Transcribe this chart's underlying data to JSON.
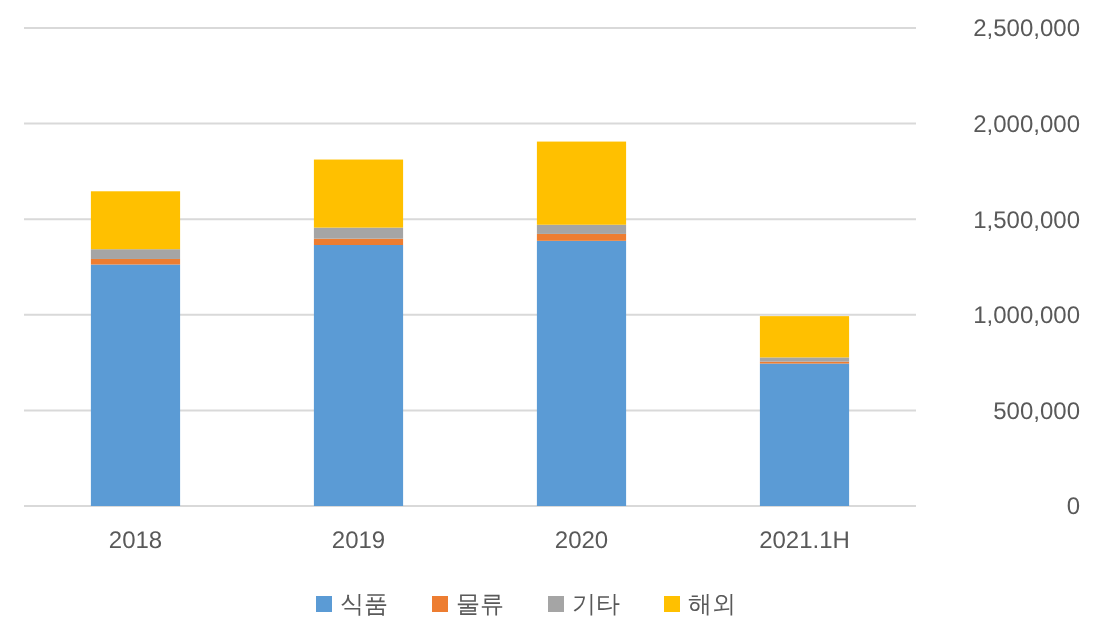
{
  "chart_data": {
    "type": "bar",
    "stacked": true,
    "categories": [
      "2018",
      "2019",
      "2020",
      "2021.1H"
    ],
    "series": [
      {
        "name": "식품",
        "color": "#5b9bd5",
        "values": [
          1263000,
          1365000,
          1387000,
          745000
        ]
      },
      {
        "name": "물류",
        "color": "#ed7d31",
        "values": [
          29000,
          33000,
          36000,
          10000
        ]
      },
      {
        "name": "기타",
        "color": "#a5a5a5",
        "values": [
          51000,
          58000,
          48000,
          22000
        ]
      },
      {
        "name": "해외",
        "color": "#ffc000",
        "values": [
          303000,
          356000,
          435000,
          216000
        ]
      }
    ],
    "ylim": [
      0,
      2500000
    ],
    "yticks": [
      {
        "value": 0,
        "label": "0"
      },
      {
        "value": 500000,
        "label": "500,000"
      },
      {
        "value": 1000000,
        "label": "1,000,000"
      },
      {
        "value": 1500000,
        "label": "1,500,000"
      },
      {
        "value": 2000000,
        "label": "2,000,000"
      },
      {
        "value": 2500000,
        "label": "2,500,000"
      }
    ],
    "grid": "y",
    "legend": "bottom"
  }
}
